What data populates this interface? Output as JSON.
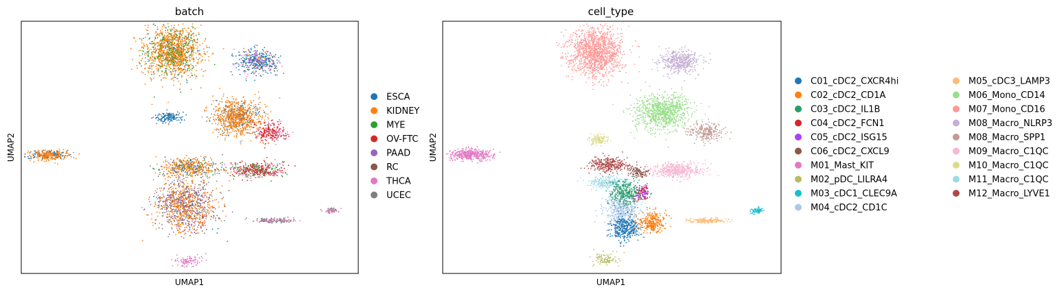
{
  "chart_data": [
    {
      "type": "scatter",
      "title": "batch",
      "xlabel": "UMAP1",
      "ylabel": "UMAP2",
      "xticks": [],
      "yticks": [],
      "legend_position": "right",
      "legend_columns": 1,
      "series": [
        {
          "name": "ESCA",
          "color": "#1f77b4"
        },
        {
          "name": "KIDNEY",
          "color": "#ff7f0e"
        },
        {
          "name": "MYE",
          "color": "#2ca02c"
        },
        {
          "name": "OV-FTC",
          "color": "#d62728"
        },
        {
          "name": "PAAD",
          "color": "#9467bd"
        },
        {
          "name": "RC",
          "color": "#8c564b"
        },
        {
          "name": "THCA",
          "color": "#e377c2"
        },
        {
          "name": "UCEC",
          "color": "#7f7f7f"
        }
      ],
      "clusters": [
        {
          "cx": 0.45,
          "cy": 0.88,
          "rx": 0.08,
          "ry": 0.1,
          "mix": [
            [
              "KIDNEY",
              0.7
            ],
            [
              "MYE",
              0.25
            ],
            [
              "ESCA",
              0.05
            ]
          ],
          "n": 1400
        },
        {
          "cx": 0.64,
          "cy": 0.62,
          "rx": 0.07,
          "ry": 0.07,
          "mix": [
            [
              "KIDNEY",
              0.8
            ],
            [
              "ESCA",
              0.1
            ],
            [
              "UCEC",
              0.1
            ]
          ],
          "n": 900
        },
        {
          "cx": 0.7,
          "cy": 0.84,
          "rx": 0.06,
          "ry": 0.045,
          "mix": [
            [
              "ESCA",
              0.6
            ],
            [
              "THCA",
              0.2
            ],
            [
              "PAAD",
              0.1
            ],
            [
              "KIDNEY",
              0.1
            ]
          ],
          "n": 450
        },
        {
          "cx": 0.08,
          "cy": 0.47,
          "rx": 0.06,
          "ry": 0.02,
          "mix": [
            [
              "KIDNEY",
              0.7
            ],
            [
              "ESCA",
              0.2
            ],
            [
              "UCEC",
              0.1
            ]
          ],
          "n": 350
        },
        {
          "cx": 0.5,
          "cy": 0.42,
          "rx": 0.08,
          "ry": 0.04,
          "mix": [
            [
              "KIDNEY",
              0.55
            ],
            [
              "UCEC",
              0.25
            ],
            [
              "ESCA",
              0.1
            ],
            [
              "MYE",
              0.1
            ]
          ],
          "n": 500
        },
        {
          "cx": 0.7,
          "cy": 0.41,
          "rx": 0.08,
          "ry": 0.03,
          "mix": [
            [
              "OV-FTC",
              0.5
            ],
            [
              "MYE",
              0.3
            ],
            [
              "THCA",
              0.2
            ]
          ],
          "n": 450
        },
        {
          "cx": 0.74,
          "cy": 0.56,
          "rx": 0.05,
          "ry": 0.035,
          "mix": [
            [
              "OV-FTC",
              0.7
            ],
            [
              "THCA",
              0.3
            ]
          ],
          "n": 250
        },
        {
          "cx": 0.49,
          "cy": 0.27,
          "rx": 0.09,
          "ry": 0.1,
          "mix": [
            [
              "KIDNEY",
              0.45
            ],
            [
              "PAAD",
              0.2
            ],
            [
              "RC",
              0.15
            ],
            [
              "UCEC",
              0.15
            ],
            [
              "ESCA",
              0.05
            ]
          ],
          "n": 1100
        },
        {
          "cx": 0.44,
          "cy": 0.62,
          "rx": 0.04,
          "ry": 0.02,
          "mix": [
            [
              "ESCA",
              0.9
            ],
            [
              "UCEC",
              0.1
            ]
          ],
          "n": 150
        },
        {
          "cx": 0.75,
          "cy": 0.21,
          "rx": 0.06,
          "ry": 0.01,
          "mix": [
            [
              "THCA",
              0.5
            ],
            [
              "UCEC",
              0.5
            ]
          ],
          "n": 150
        },
        {
          "cx": 0.92,
          "cy": 0.25,
          "rx": 0.02,
          "ry": 0.01,
          "mix": [
            [
              "THCA",
              0.6
            ],
            [
              "UCEC",
              0.4
            ]
          ],
          "n": 60
        },
        {
          "cx": 0.5,
          "cy": 0.05,
          "rx": 0.04,
          "ry": 0.02,
          "mix": [
            [
              "THCA",
              1.0
            ]
          ],
          "n": 90
        }
      ]
    },
    {
      "type": "scatter",
      "title": "cell_type",
      "xlabel": "UMAP1",
      "ylabel": "UMAP2",
      "xticks": [],
      "yticks": [],
      "legend_position": "right",
      "legend_columns": 2,
      "series": [
        {
          "name": "C01_cDC2_CXCR4hi",
          "color": "#1f77b4"
        },
        {
          "name": "C02_cDC2_CD1A",
          "color": "#ff7f0e"
        },
        {
          "name": "C03_cDC2_IL1B",
          "color": "#279e68"
        },
        {
          "name": "C04_cDC2_FCN1",
          "color": "#d62728"
        },
        {
          "name": "C05_cDC2_ISG15",
          "color": "#aa40fc"
        },
        {
          "name": "C06_cDC2_CXCL9",
          "color": "#8c564b"
        },
        {
          "name": "M01_Mast_KIT",
          "color": "#e377c2"
        },
        {
          "name": "M02_pDC_LILRA4",
          "color": "#b5bd61"
        },
        {
          "name": "M03_cDC1_CLEC9A",
          "color": "#17becf"
        },
        {
          "name": "M04_cDC2_CD1C",
          "color": "#aec7e8"
        },
        {
          "name": "M05_cDC3_LAMP3",
          "color": "#ffbb78"
        },
        {
          "name": "M06_Mono_CD14",
          "color": "#98df8a"
        },
        {
          "name": "M07_Mono_CD16",
          "color": "#ff9896"
        },
        {
          "name": "M08_Macro_NLRP3",
          "color": "#c5b0d5"
        },
        {
          "name": "M08_Macro_SPP1",
          "color": "#c49c94"
        },
        {
          "name": "M09_Macro_C1QC",
          "color": "#f7b6d2"
        },
        {
          "name": "M10_Macro_C1QC",
          "color": "#dbdb8d"
        },
        {
          "name": "M11_Macro_C1QC",
          "color": "#9edae5"
        },
        {
          "name": "M12_Macro_LYVE1",
          "color": "#ad494a"
        }
      ],
      "clusters": [
        {
          "cx": 0.45,
          "cy": 0.88,
          "rx": 0.08,
          "ry": 0.1,
          "mix": [
            [
              "M07_Mono_CD16",
              1.0
            ]
          ],
          "n": 1300
        },
        {
          "cx": 0.65,
          "cy": 0.64,
          "rx": 0.08,
          "ry": 0.07,
          "mix": [
            [
              "M06_Mono_CD14",
              1.0
            ]
          ],
          "n": 900
        },
        {
          "cx": 0.7,
          "cy": 0.84,
          "rx": 0.06,
          "ry": 0.045,
          "mix": [
            [
              "M08_Macro_NLRP3",
              1.0
            ]
          ],
          "n": 450
        },
        {
          "cx": 0.08,
          "cy": 0.47,
          "rx": 0.065,
          "ry": 0.022,
          "mix": [
            [
              "M01_Mast_KIT",
              1.0
            ]
          ],
          "n": 400
        },
        {
          "cx": 0.49,
          "cy": 0.43,
          "rx": 0.06,
          "ry": 0.03,
          "mix": [
            [
              "M12_Macro_LYVE1",
              1.0
            ]
          ],
          "n": 300
        },
        {
          "cx": 0.49,
          "cy": 0.36,
          "rx": 0.06,
          "ry": 0.025,
          "mix": [
            [
              "M11_Macro_C1QC",
              1.0
            ]
          ],
          "n": 250
        },
        {
          "cx": 0.69,
          "cy": 0.41,
          "rx": 0.08,
          "ry": 0.03,
          "mix": [
            [
              "M09_Macro_C1QC",
              1.0
            ]
          ],
          "n": 450
        },
        {
          "cx": 0.46,
          "cy": 0.53,
          "rx": 0.03,
          "ry": 0.02,
          "mix": [
            [
              "M10_Macro_C1QC",
              1.0
            ]
          ],
          "n": 120
        },
        {
          "cx": 0.78,
          "cy": 0.56,
          "rx": 0.05,
          "ry": 0.035,
          "mix": [
            [
              "M08_Macro_SPP1",
              1.0
            ]
          ],
          "n": 250
        },
        {
          "cx": 0.53,
          "cy": 0.26,
          "rx": 0.05,
          "ry": 0.08,
          "mix": [
            [
              "M04_cDC2_CD1C",
              1.0
            ]
          ],
          "n": 550
        },
        {
          "cx": 0.54,
          "cy": 0.18,
          "rx": 0.04,
          "ry": 0.05,
          "mix": [
            [
              "C01_cDC2_CXCR4hi",
              1.0
            ]
          ],
          "n": 350
        },
        {
          "cx": 0.54,
          "cy": 0.32,
          "rx": 0.05,
          "ry": 0.05,
          "mix": [
            [
              "C03_cDC2_IL1B",
              1.0
            ]
          ],
          "n": 300
        },
        {
          "cx": 0.62,
          "cy": 0.2,
          "rx": 0.04,
          "ry": 0.04,
          "mix": [
            [
              "C02_cDC2_CD1A",
              1.0
            ]
          ],
          "n": 300
        },
        {
          "cx": 0.59,
          "cy": 0.32,
          "rx": 0.02,
          "ry": 0.03,
          "mix": [
            [
              "C04_cDC2_FCN1",
              0.5
            ],
            [
              "C05_cDC2_ISG15",
              0.5
            ]
          ],
          "n": 120
        },
        {
          "cx": 0.58,
          "cy": 0.4,
          "rx": 0.03,
          "ry": 0.02,
          "mix": [
            [
              "C06_cDC2_CXCL9",
              1.0
            ]
          ],
          "n": 100
        },
        {
          "cx": 0.78,
          "cy": 0.21,
          "rx": 0.06,
          "ry": 0.01,
          "mix": [
            [
              "M05_cDC3_LAMP3",
              1.0
            ]
          ],
          "n": 150
        },
        {
          "cx": 0.93,
          "cy": 0.25,
          "rx": 0.02,
          "ry": 0.012,
          "mix": [
            [
              "M03_cDC1_CLEC9A",
              1.0
            ]
          ],
          "n": 80
        },
        {
          "cx": 0.48,
          "cy": 0.06,
          "rx": 0.04,
          "ry": 0.025,
          "mix": [
            [
              "M02_pDC_LILRA4",
              1.0
            ]
          ],
          "n": 90
        }
      ]
    }
  ]
}
